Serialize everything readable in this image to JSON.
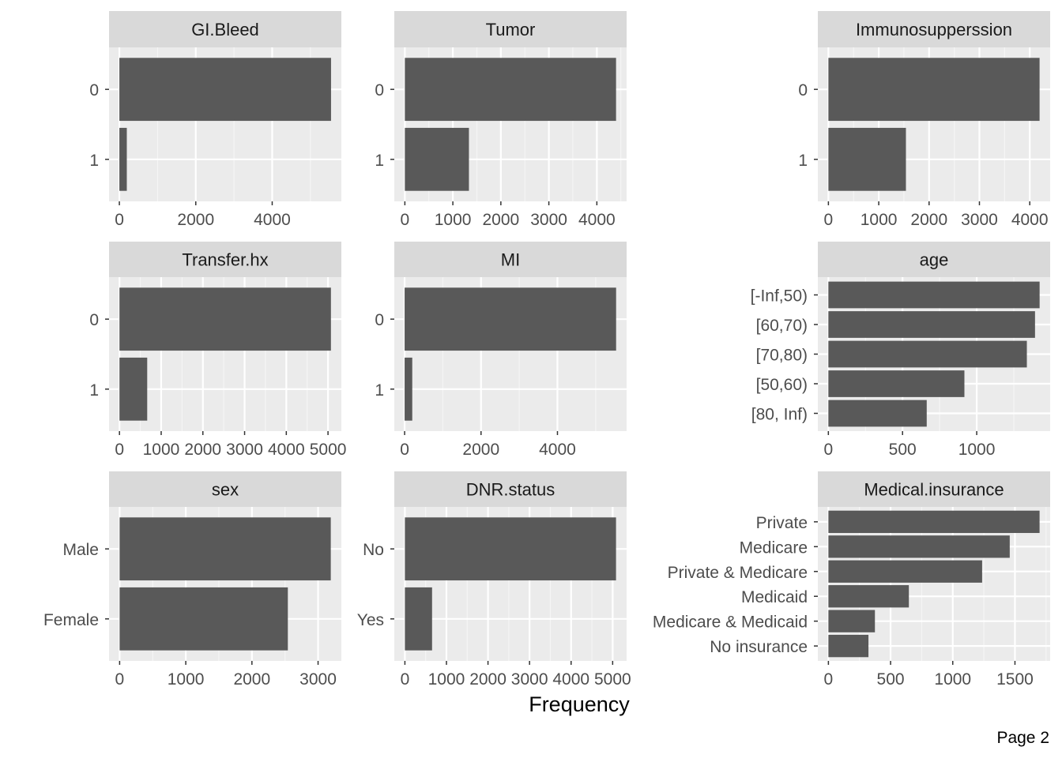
{
  "chart_data": [
    {
      "type": "bar",
      "orientation": "horizontal",
      "title": "GI.Bleed",
      "categories": [
        "0",
        "1"
      ],
      "values": [
        5540,
        195
      ],
      "xticks": [
        0,
        2000,
        4000
      ],
      "xlim": [
        -270,
        5810
      ]
    },
    {
      "type": "bar",
      "orientation": "horizontal",
      "title": "Tumor",
      "categories": [
        "0",
        "1"
      ],
      "values": [
        4400,
        1335
      ],
      "xticks": [
        0,
        1000,
        2000,
        3000,
        4000
      ],
      "xlim": [
        -220,
        4620
      ]
    },
    {
      "type": "bar",
      "orientation": "horizontal",
      "title": "Immunosupperssion",
      "categories": [
        "0",
        "1"
      ],
      "values": [
        4195,
        1540
      ],
      "xticks": [
        0,
        1000,
        2000,
        3000,
        4000
      ],
      "xlim": [
        -210,
        4405
      ]
    },
    {
      "type": "bar",
      "orientation": "horizontal",
      "title": "Transfer.hx",
      "categories": [
        "0",
        "1"
      ],
      "values": [
        5070,
        665
      ],
      "xticks": [
        0,
        1000,
        2000,
        3000,
        4000,
        5000
      ],
      "xlim": [
        -250,
        5320
      ]
    },
    {
      "type": "bar",
      "orientation": "horizontal",
      "title": "MI",
      "categories": [
        "0",
        "1"
      ],
      "values": [
        5535,
        200
      ],
      "xticks": [
        0,
        2000,
        4000
      ],
      "xlim": [
        -270,
        5810
      ]
    },
    {
      "type": "bar",
      "orientation": "horizontal",
      "title": "age",
      "categories": [
        "[-Inf,50)",
        "[60,70)",
        "[70,80)",
        "[50,60)",
        "[80, Inf)"
      ],
      "values": [
        1424,
        1393,
        1338,
        917,
        663
      ],
      "xticks": [
        0,
        500,
        1000
      ],
      "xlim": [
        -71,
        1495
      ]
    },
    {
      "type": "bar",
      "orientation": "horizontal",
      "title": "sex",
      "categories": [
        "Male",
        "Female"
      ],
      "values": [
        3192,
        2543
      ],
      "xticks": [
        0,
        1000,
        2000,
        3000
      ],
      "xlim": [
        -160,
        3352
      ]
    },
    {
      "type": "bar",
      "orientation": "horizontal",
      "title": "DNR.status",
      "categories": [
        "No",
        "Yes"
      ],
      "values": [
        5081,
        654
      ],
      "xticks": [
        0,
        1000,
        2000,
        3000,
        4000,
        5000
      ],
      "xlim": [
        -255,
        5336
      ]
    },
    {
      "type": "bar",
      "orientation": "horizontal",
      "title": "Medical.insurance",
      "categories": [
        "Private",
        "Medicare",
        "Private & Medicare",
        "Medicaid",
        "Medicare & Medicaid",
        "No insurance"
      ],
      "values": [
        1698,
        1458,
        1236,
        647,
        374,
        322
      ],
      "xticks": [
        0,
        500,
        1000,
        1500
      ],
      "xlim": [
        -85,
        1783
      ]
    }
  ],
  "xlabel": "Frequency",
  "page_label": "Page 2",
  "colors": {
    "bar": "#595959",
    "panel": "#ebebeb",
    "strip": "#d9d9d9",
    "grid_major": "#ffffff",
    "grid_minor": "#f5f5f5",
    "tick_text": "#4d4d4d"
  }
}
